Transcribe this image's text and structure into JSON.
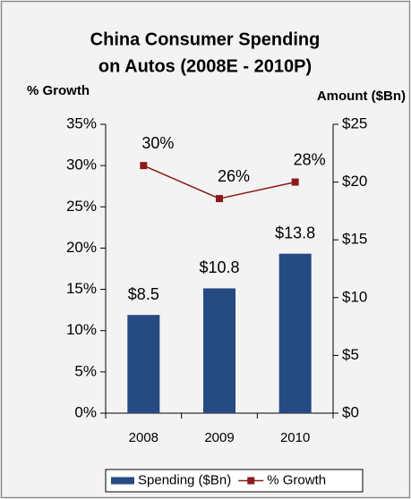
{
  "chart_data": {
    "type": "bar-line",
    "title": [
      "China Consumer Spending",
      "on Autos (2008E - 2010P)"
    ],
    "y_label": "% Growth",
    "y2_label": "Amount ($Bn)",
    "categories": [
      "2008",
      "2009",
      "2010"
    ],
    "series": [
      {
        "name": "Spending ($Bn)",
        "type": "bar",
        "axis": "y2",
        "color": "#264a82",
        "values": [
          8.5,
          10.8,
          13.8
        ],
        "value_labels": [
          "$8.5",
          "$10.8",
          "$13.8"
        ]
      },
      {
        "name": "% Growth",
        "type": "line",
        "axis": "y",
        "color": "#8b1a1a",
        "values": [
          30,
          26,
          28
        ],
        "value_labels": [
          "30%",
          "26%",
          "28%"
        ]
      }
    ],
    "ylim": [
      0,
      35
    ],
    "yticks": [
      {
        "value": 0,
        "label": "0%"
      },
      {
        "value": 5,
        "label": "5%"
      },
      {
        "value": 10,
        "label": "10%"
      },
      {
        "value": 15,
        "label": "15%"
      },
      {
        "value": 20,
        "label": "20%"
      },
      {
        "value": 25,
        "label": "25%"
      },
      {
        "value": 30,
        "label": "30%"
      },
      {
        "value": 35,
        "label": "35%"
      }
    ],
    "y2lim": [
      0,
      25
    ],
    "y2ticks": [
      {
        "value": 0,
        "label": "$0"
      },
      {
        "value": 5,
        "label": "$5"
      },
      {
        "value": 10,
        "label": "$10"
      },
      {
        "value": 15,
        "label": "$15"
      },
      {
        "value": 20,
        "label": "$20"
      },
      {
        "value": 25,
        "label": "$25"
      }
    ],
    "legend": "bottom"
  }
}
